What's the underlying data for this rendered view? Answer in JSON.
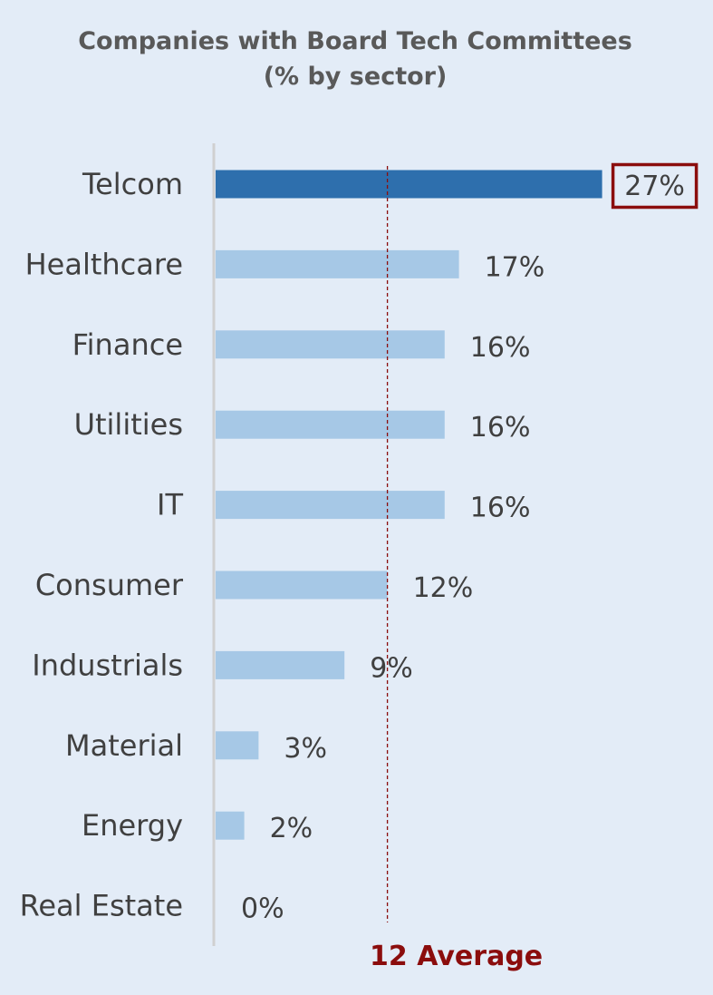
{
  "chart_data": {
    "type": "bar",
    "orientation": "horizontal",
    "title_line1": "Companies with Board  Tech Committees",
    "title_line2": "(% by sector)",
    "categories": [
      "Telcom",
      "Healthcare",
      "Finance",
      "Utilities",
      "IT",
      "Consumer",
      "Industrials",
      "Material",
      "Energy",
      "Real Estate"
    ],
    "values": [
      27,
      17,
      16,
      16,
      16,
      12,
      9,
      3,
      2,
      0
    ],
    "value_labels": [
      "27%",
      "17%",
      "16%",
      "16%",
      "16%",
      "12%",
      "9%",
      "3%",
      "2%",
      "0%"
    ],
    "highlighted_category": "Telcom",
    "reference_line": {
      "value": 12,
      "label": "12 Average",
      "style": "dashed",
      "color": "#8b0d0d"
    },
    "colors": {
      "highlight_bar": "#2e6fad",
      "bar": "#a6c8e6",
      "highlight_box": "#8b0d0d",
      "background": "#e3ecf7",
      "axis": "#d0d0d0"
    },
    "grid": false,
    "xlim": [
      0,
      27
    ]
  }
}
